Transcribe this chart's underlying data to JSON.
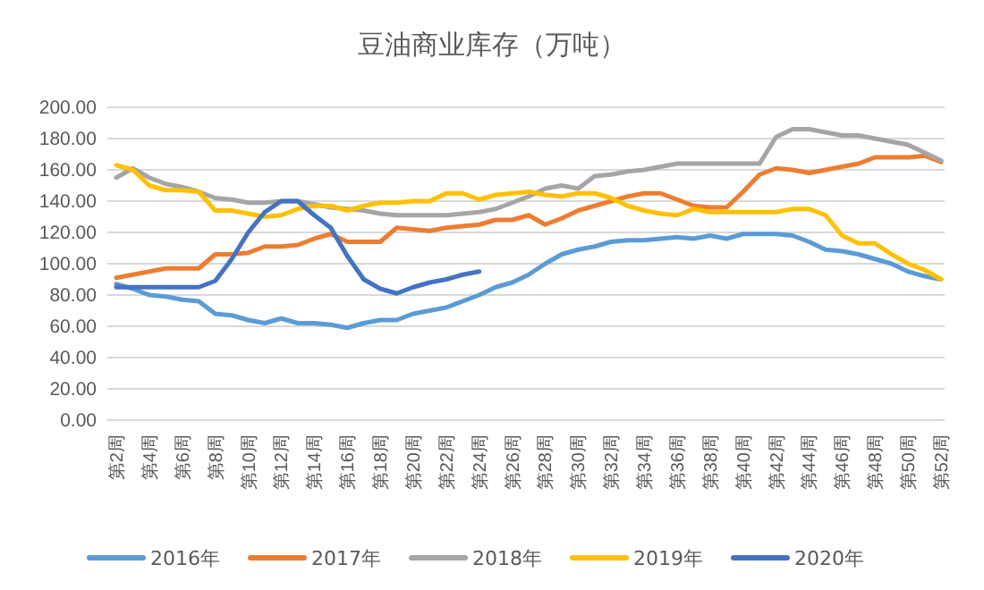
{
  "chart_data": {
    "type": "line",
    "title": "豆油商业库存（万吨）",
    "categories": [
      "第2周",
      null,
      "第4周",
      null,
      "第6周",
      null,
      "第8周",
      null,
      "第10周",
      null,
      "第12周",
      null,
      "第14周",
      null,
      "第16周",
      null,
      "第18周",
      null,
      "第20周",
      null,
      "第22周",
      null,
      "第24周",
      null,
      "第26周",
      null,
      "第28周",
      null,
      "第30周",
      null,
      "第32周",
      null,
      "第34周",
      null,
      "第36周",
      null,
      "第38周",
      null,
      "第40周",
      null,
      "第42周",
      null,
      "第44周",
      null,
      "第46周",
      null,
      "第48周",
      null,
      "第50周",
      null,
      "第52周"
    ],
    "series": [
      {
        "name": "2016年",
        "color": "#5b9bd5",
        "values": [
          87,
          84,
          80,
          79,
          77,
          76,
          68,
          67,
          64,
          62,
          65,
          62,
          62,
          61,
          59,
          62,
          64,
          64,
          68,
          70,
          72,
          76,
          80,
          85,
          88,
          93,
          100,
          106,
          109,
          111,
          114,
          115,
          115,
          116,
          117,
          116,
          118,
          116,
          119,
          119,
          119,
          118,
          114,
          109,
          108,
          106,
          103,
          100,
          95,
          92,
          90
        ]
      },
      {
        "name": "2017年",
        "color": "#ed7d31",
        "values": [
          91,
          93,
          95,
          97,
          97,
          97,
          106,
          106,
          107,
          111,
          111,
          112,
          116,
          119,
          114,
          114,
          114,
          123,
          122,
          121,
          123,
          124,
          125,
          128,
          128,
          131,
          125,
          129,
          134,
          137,
          140,
          143,
          145,
          145,
          141,
          137,
          136,
          136,
          146,
          157,
          161,
          160,
          158,
          160,
          162,
          164,
          168,
          168,
          168,
          169,
          165
        ]
      },
      {
        "name": "2018年",
        "color": "#a5a5a5",
        "values": [
          155,
          161,
          155,
          151,
          149,
          146,
          142,
          141,
          139,
          139,
          140,
          140,
          138,
          136,
          135,
          134,
          132,
          131,
          131,
          131,
          131,
          132,
          133,
          135,
          139,
          143,
          148,
          150,
          148,
          156,
          157,
          159,
          160,
          162,
          164,
          164,
          164,
          164,
          164,
          164,
          181,
          186,
          186,
          184,
          182,
          182,
          180,
          178,
          176,
          171,
          166
        ]
      },
      {
        "name": "2019年",
        "color": "#ffc000",
        "values": [
          163,
          160,
          150,
          147,
          147,
          146,
          134,
          134,
          132,
          130,
          131,
          135,
          137,
          137,
          134,
          137,
          139,
          139,
          140,
          140,
          145,
          145,
          141,
          144,
          145,
          146,
          144,
          143,
          145,
          145,
          142,
          137,
          134,
          132,
          131,
          135,
          133,
          133,
          133,
          133,
          133,
          135,
          135,
          131,
          118,
          113,
          113,
          106,
          100,
          96,
          90
        ]
      },
      {
        "name": "2020年",
        "color": "#4472c4",
        "values": [
          85,
          85,
          85,
          85,
          85,
          85,
          89,
          103,
          120,
          133,
          140,
          140,
          131,
          123,
          105,
          90,
          84,
          81,
          85,
          88,
          90,
          93,
          95,
          null,
          null,
          null,
          null,
          null,
          null,
          null,
          null,
          null,
          null,
          null,
          null,
          null,
          null,
          null,
          null,
          null,
          null,
          null,
          null,
          null,
          null,
          null,
          null,
          null,
          null,
          null,
          null
        ]
      }
    ],
    "ylim": [
      0,
      200
    ],
    "yticks": [
      {
        "value": 0,
        "label": "0.00"
      },
      {
        "value": 20,
        "label": "20.00"
      },
      {
        "value": 40,
        "label": "40.00"
      },
      {
        "value": 60,
        "label": "60.00"
      },
      {
        "value": 80,
        "label": "80.00"
      },
      {
        "value": 100,
        "label": "100.00"
      },
      {
        "value": 120,
        "label": "120.00"
      },
      {
        "value": 140,
        "label": "140.00"
      },
      {
        "value": 160,
        "label": "160.00"
      },
      {
        "value": 180,
        "label": "180.00"
      },
      {
        "value": 200,
        "label": "200.00"
      }
    ],
    "grid": "y",
    "legend": "bottom",
    "marker": "none",
    "line_style": "solid"
  }
}
